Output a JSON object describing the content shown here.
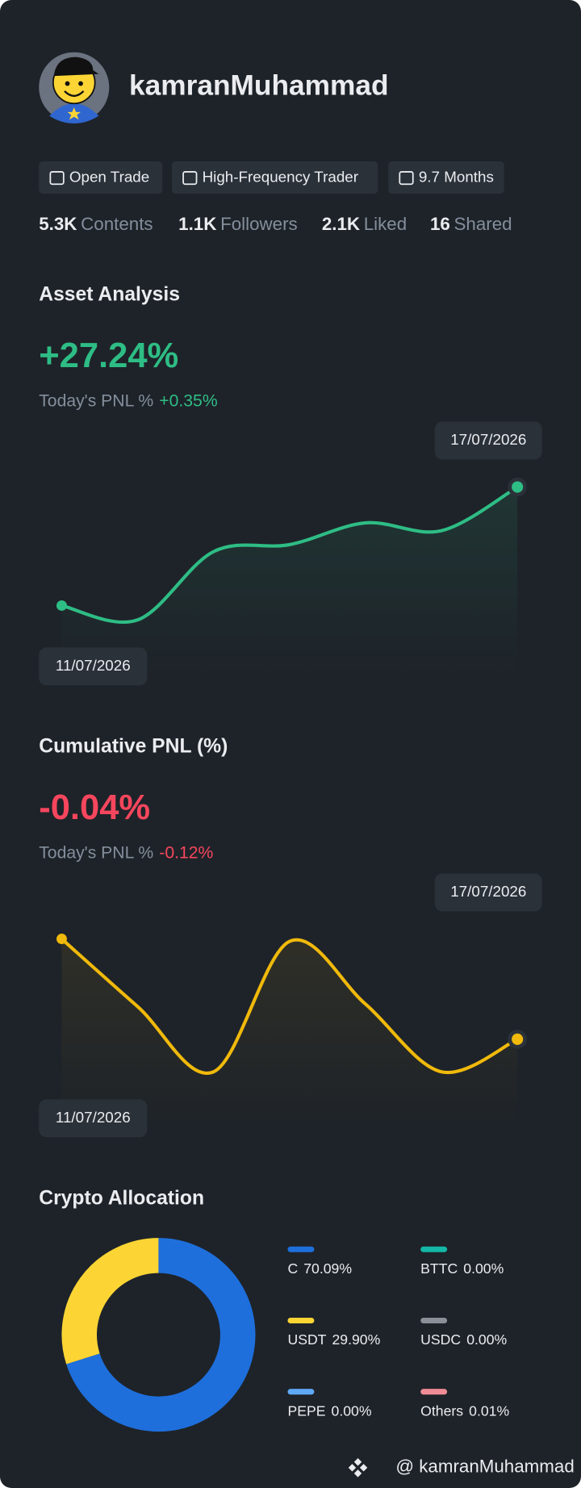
{
  "profile": {
    "name": "kamranMuhammad",
    "tags": [
      "Open Trade",
      "High-Frequency Trader",
      "9.7 Months"
    ],
    "stats": [
      {
        "value": "5.3K",
        "label": "Contents"
      },
      {
        "value": "1.1K",
        "label": "Followers"
      },
      {
        "value": "2.1K",
        "label": "Liked"
      },
      {
        "value": "16",
        "label": "Shared"
      }
    ]
  },
  "asset_analysis": {
    "title": "Asset Analysis",
    "value": "+27.24%",
    "pnl_label": "Today's PNL %",
    "pnl_value": "+0.35%",
    "color": "#2ebd85",
    "chart": {
      "type": "line",
      "categories": [
        "11/07/2026",
        null,
        null,
        null,
        null,
        null,
        "17/07/2026"
      ],
      "series": [
        {
          "color": "#2ebd85",
          "values": [
            0,
            -3.3,
            12.4,
            14,
            19,
            17.2,
            27.24
          ]
        }
      ]
    }
  },
  "cumulative_pnl": {
    "title": "Cumulative PNL (%)",
    "value": "-0.04%",
    "pnl_label": "Today's PNL %",
    "pnl_value": "-0.12%",
    "color": "#f6465d",
    "chart": {
      "type": "line",
      "categories": [
        "11/07/2026",
        null,
        null,
        null,
        null,
        null,
        "17/07/2026"
      ],
      "series": [
        {
          "color": "#f0b90b",
          "values": [
            0,
            -0.027,
            -0.053,
            -0.001,
            -0.026,
            -0.053,
            -0.04
          ]
        }
      ]
    }
  },
  "allocation": {
    "title": "Crypto Allocation",
    "chart": {
      "type": "pie",
      "categories": [
        "C",
        "USDT",
        "PEPE",
        "BTTC",
        "USDC",
        "Others"
      ],
      "values": [
        70.09,
        29.9,
        0.0,
        0.0,
        0.0,
        0.01
      ],
      "value_labels": [
        "70.09%",
        "29.90%",
        "0.00%",
        "0.00%",
        "0.00%",
        "0.01%"
      ],
      "colors": [
        "#1e6fdc",
        "#fcd535",
        "#5fa8f5",
        "#14b8a6",
        "#8a8f98",
        "#f08c96"
      ]
    }
  },
  "footer": "@ kamranMuhammad"
}
